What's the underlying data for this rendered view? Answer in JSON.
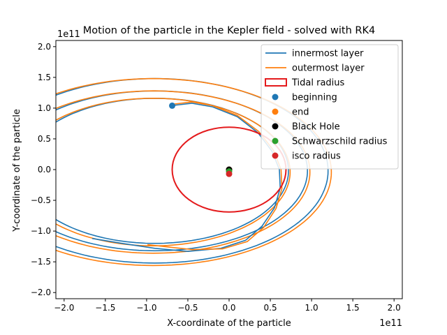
{
  "chart_data": {
    "type": "line",
    "title": "Motion of the particle in the Kepler field - solved with RK4",
    "xlabel": "X-coordinate of the particle",
    "ylabel": "Y-coordinate of the particle",
    "x_offset_label": "1e11",
    "y_offset_label": "1e11",
    "xlim": [
      -2.1,
      2.1
    ],
    "ylim": [
      -2.1,
      2.1
    ],
    "xticks": [
      -2.0,
      -1.5,
      -1.0,
      -0.5,
      0.0,
      0.5,
      1.0,
      1.5,
      2.0
    ],
    "yticks": [
      -2.0,
      -1.5,
      -1.0,
      -0.5,
      0.0,
      0.5,
      1.0,
      1.5,
      2.0
    ],
    "xtick_labels": [
      "−2.0",
      "−1.5",
      "−1.0",
      "−0.5",
      "0.0",
      "0.5",
      "1.0",
      "1.5",
      "2.0"
    ],
    "ytick_labels": [
      "−2.0",
      "−1.5",
      "−1.0",
      "−0.5",
      "0.0",
      "0.5",
      "1.0",
      "1.5",
      "2.0"
    ],
    "grid": false,
    "legend_position": "top-right",
    "series": [
      {
        "name": "innermost layer",
        "color": "#1f77b4",
        "kind": "line",
        "points": [
          [
            -0.7,
            1.04
          ],
          [
            -0.45,
            1.08
          ],
          [
            -0.2,
            1.02
          ],
          [
            0.1,
            0.86
          ],
          [
            0.35,
            0.6
          ],
          [
            0.52,
            0.3
          ],
          [
            0.61,
            0.0
          ],
          [
            0.62,
            -0.3
          ],
          [
            0.55,
            -0.62
          ],
          [
            0.4,
            -0.92
          ],
          [
            0.2,
            -1.15
          ],
          [
            -0.1,
            -1.28
          ],
          [
            -0.5,
            -1.33
          ],
          [
            -0.9,
            -1.28
          ],
          [
            -1.3,
            -1.2
          ],
          [
            -1.66,
            -1.12
          ]
        ]
      },
      {
        "name": "outermost layer",
        "color": "#ff7f0e",
        "kind": "line",
        "points": [
          [
            -0.7,
            1.06
          ],
          [
            -0.45,
            1.1
          ],
          [
            -0.2,
            1.04
          ],
          [
            0.1,
            0.88
          ],
          [
            0.36,
            0.62
          ],
          [
            0.54,
            0.31
          ],
          [
            0.63,
            0.0
          ],
          [
            0.64,
            -0.31
          ],
          [
            0.57,
            -0.63
          ],
          [
            0.42,
            -0.94
          ],
          [
            0.22,
            -1.17
          ],
          [
            -0.08,
            -1.29
          ],
          [
            -0.45,
            -1.3
          ],
          [
            -0.8,
            -1.25
          ],
          [
            -0.99,
            -1.22
          ]
        ]
      },
      {
        "name": "Tidal radius",
        "color": "#e41a1c",
        "kind": "circle",
        "radius": 0.69
      },
      {
        "name": "beginning",
        "color": "#1f77b4",
        "kind": "point",
        "x": -0.69,
        "y": 1.04
      },
      {
        "name": "end",
        "color": "#ff7f0e",
        "kind": "point",
        "x": 0.0,
        "y": 0.0
      },
      {
        "name": "Black Hole",
        "color": "#000000",
        "kind": "point",
        "x": 0.0,
        "y": 0.0
      },
      {
        "name": "Schwarzschild radius",
        "color": "#2ca02c",
        "kind": "point",
        "x": 0.0,
        "y": -0.03
      },
      {
        "name": "isco radius",
        "color": "#d62728",
        "kind": "point",
        "x": 0.0,
        "y": -0.07
      }
    ],
    "orbit_bands": [
      {
        "color": "#1f77b4",
        "a": [
          2.1,
          1.85,
          1.62
        ],
        "cx": -0.9,
        "cy": -0.02,
        "b": [
          1.5,
          1.3,
          1.18
        ]
      },
      {
        "color": "#ff7f0e",
        "a": [
          2.16,
          1.9,
          1.66
        ],
        "cx": -0.92,
        "cy": -0.04,
        "b": [
          1.52,
          1.32,
          1.2
        ]
      }
    ]
  }
}
